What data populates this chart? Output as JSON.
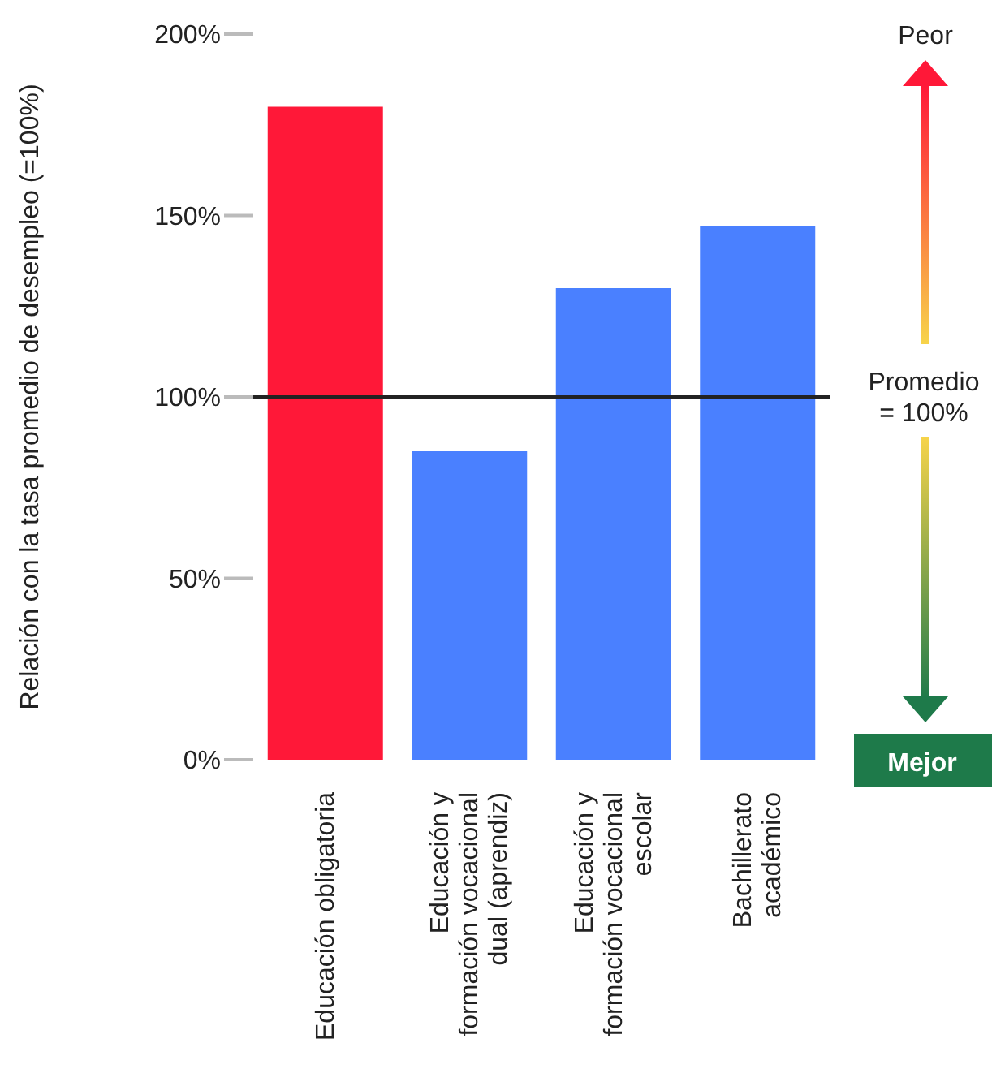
{
  "chart_data": {
    "type": "bar",
    "ylabel": "Relación con la tasa promedio de desempleo (=100%)",
    "categories": [
      "Educación obligatoria",
      "Educación y\nformación vocacional\ndual (aprendiz)",
      "Educación y\nformación vocacional\nescolar",
      "Bachillerato\nacadémico"
    ],
    "values": [
      180,
      85,
      130,
      147
    ],
    "colors": [
      "#ff1838",
      "#4a80ff",
      "#4a80ff",
      "#4a80ff"
    ],
    "ylim": [
      0,
      200
    ],
    "yticks": [
      {
        "value": 0,
        "label": "0%"
      },
      {
        "value": 50,
        "label": "50%"
      },
      {
        "value": 100,
        "label": "100%"
      },
      {
        "value": 150,
        "label": "150%"
      },
      {
        "value": 200,
        "label": "200%"
      }
    ],
    "ref_lines": [
      {
        "axis": "y",
        "value": 100,
        "label": "Promedio\n= 100%",
        "color": "#222222"
      }
    ],
    "annotations": [
      "Peor",
      "Mejor"
    ],
    "grid": false,
    "legend": false
  }
}
